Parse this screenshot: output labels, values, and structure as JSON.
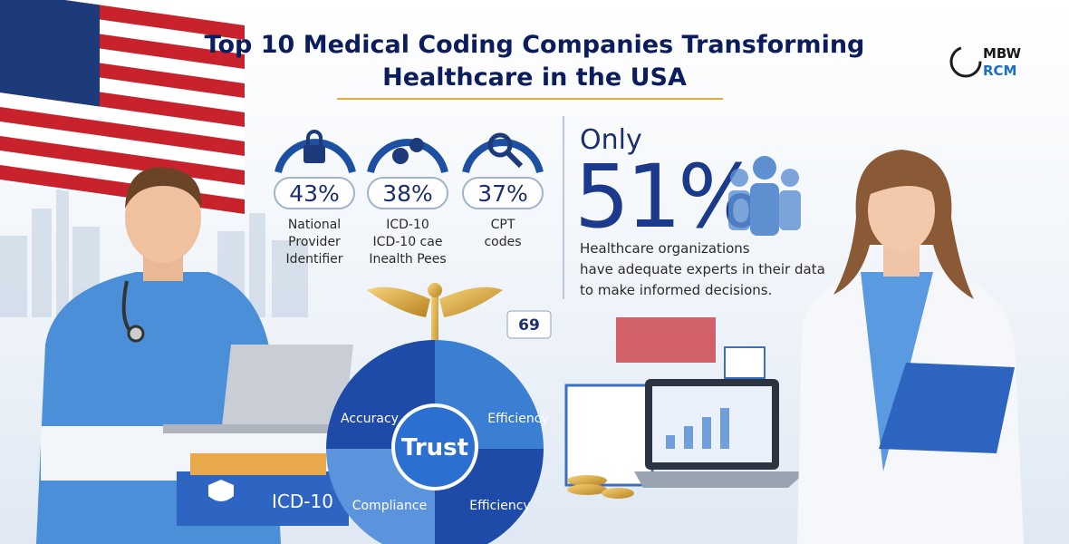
{
  "header": {
    "title_lines": [
      "Top 10 Medical Coding Companies Transforming",
      "Healthcare in the USA"
    ]
  },
  "logo": {
    "lines": [
      "MBW",
      "RCM"
    ]
  },
  "stats": [
    {
      "value": "43%",
      "label_lines": [
        "National",
        "Provider",
        "Identifier"
      ]
    },
    {
      "value": "38%",
      "label_lines": [
        "ICD-10",
        "ICD-10 cae",
        "Inealth Pees"
      ]
    },
    {
      "value": "37%",
      "label_lines": [
        "CPT",
        "codes"
      ]
    }
  ],
  "highlight": {
    "prefix": "Only",
    "value": "51%",
    "text_lines": [
      "Healthcare organizations",
      "have adequate experts in their data",
      "to make informed decisions."
    ]
  },
  "wheel": {
    "center": "Trust",
    "segments": [
      "Accuracy",
      "Efficiency",
      "Compliance",
      "Efficiency"
    ]
  },
  "badge": "69",
  "box_label": "ICD-10"
}
